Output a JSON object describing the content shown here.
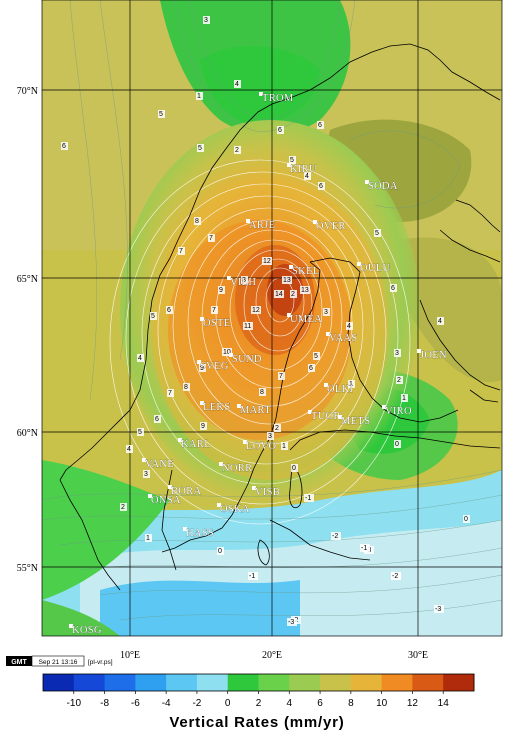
{
  "map": {
    "colorbar_title": "Vertical Rates (mm/yr)",
    "colorbar_ticks": [
      "-10",
      "-8",
      "-6",
      "-4",
      "-2",
      "0",
      "2",
      "4",
      "6",
      "8",
      "10",
      "12",
      "14"
    ],
    "colorbar_colors": [
      "#0b2ab4",
      "#1548d6",
      "#1d6ee8",
      "#2f9ff0",
      "#5cc7f2",
      "#8ee0f0",
      "#2fc83c",
      "#6ad24a",
      "#9ccb52",
      "#c9c24a",
      "#e6b438",
      "#f08a22",
      "#d95a14",
      "#b02a0c"
    ],
    "lat_labels": [
      "70°N",
      "65°N",
      "60°N",
      "55°N"
    ],
    "lon_labels": [
      "10°E",
      "20°E",
      "30°E"
    ],
    "stations": [
      "TROM",
      "KIRU",
      "SODA",
      "ARJE",
      "OVER",
      "OULU",
      "VILH",
      "SKEL",
      "UMEA",
      "OSTE",
      "VAAS",
      "JOEN",
      "SVEG",
      "SUND",
      "LEKS",
      "MART",
      "OLKI",
      "TUOR",
      "VIRO",
      "METS",
      "KARL",
      "LOVO",
      "NORR",
      "VANE",
      "BORA",
      "ONSA",
      "OSKA",
      "VISB",
      "HASS",
      "KOSG"
    ],
    "contour_labels": [
      "3",
      "1",
      "4",
      "5",
      "5",
      "2",
      "6",
      "6",
      "6",
      "5",
      "4",
      "6",
      "7",
      "8",
      "7",
      "9",
      "8",
      "7",
      "6",
      "5",
      "4",
      "12",
      "13",
      "14",
      "13",
      "12",
      "11",
      "10",
      "9",
      "8",
      "7",
      "6",
      "5",
      "4",
      "3",
      "2",
      "1",
      "0",
      "-1",
      "-2",
      "-3",
      "-2",
      "-1",
      "0",
      "1",
      "2",
      "3",
      "9",
      "8",
      "7",
      "6",
      "5",
      "4",
      "3",
      "2",
      "1",
      "6",
      "5",
      "4",
      "3",
      "2",
      "1",
      "0",
      "0",
      "-1",
      "-2",
      "-3",
      "-3",
      "-2"
    ],
    "gmt_stamp": {
      "logo": "GMT",
      "date": "Sep 21 13:16",
      "file": "[pl-vr.ps]"
    }
  }
}
